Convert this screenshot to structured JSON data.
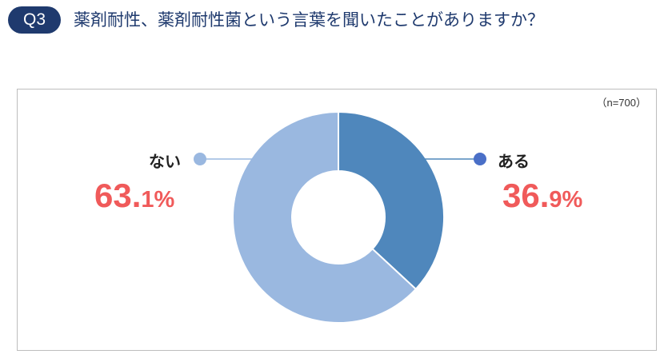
{
  "header": {
    "badge": "Q3",
    "question": "薬剤耐性、薬剤耐性菌という言葉を聞いたことがありますか？"
  },
  "sample_note": "（n=700）",
  "chart_data": {
    "type": "pie",
    "donut": true,
    "slices": [
      {
        "label": "ある",
        "value": 36.9,
        "int_part": "36.",
        "dec_part": "9%",
        "color": "#4f87bc",
        "marker_color": "#4a6fc7"
      },
      {
        "label": "ない",
        "value": 63.1,
        "int_part": "63.",
        "dec_part": "1%",
        "color": "#9ab8e0",
        "marker_color": "#9ab8e0"
      }
    ],
    "start_angle_deg": 0,
    "direction": "clockwise"
  }
}
